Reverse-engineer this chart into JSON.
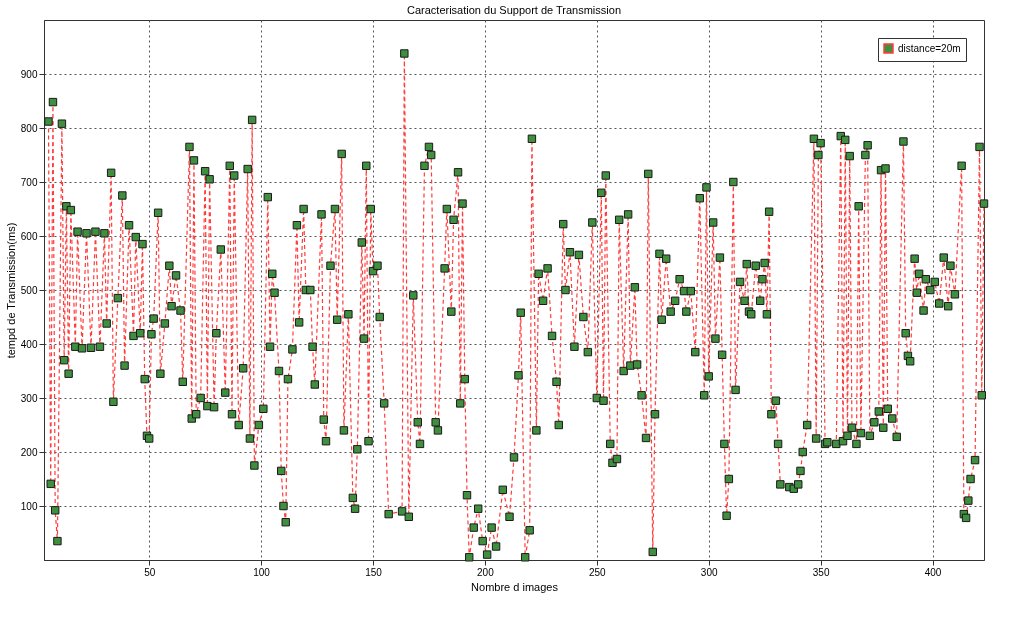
{
  "chart_data": {
    "type": "line",
    "title": "Caracterisation du Support de Transmission",
    "xlabel": "Nombre d images",
    "ylabel": "tempd de Transmission(ms)",
    "xlim": [
      3,
      423
    ],
    "ylim": [
      0,
      1000
    ],
    "xticks": [
      50,
      100,
      150,
      200,
      250,
      300,
      350,
      400
    ],
    "yticks": [
      100,
      200,
      300,
      400,
      500,
      600,
      700,
      800,
      900
    ],
    "grid": true,
    "legend": "top right",
    "marker": "square",
    "line_style": "dashed",
    "series": [
      {
        "name": "distance=20m",
        "color": "#ff3b3b",
        "x": [
          5,
          6,
          7,
          8,
          9,
          11,
          12,
          13,
          14,
          15,
          17,
          18,
          20,
          22,
          24,
          26,
          28,
          30,
          31,
          33,
          34,
          36,
          38,
          39,
          41,
          43,
          44,
          46,
          47,
          48,
          49,
          50,
          51,
          52,
          54,
          55,
          57,
          59,
          60,
          62,
          64,
          65,
          68,
          69,
          70,
          71,
          73,
          75,
          76,
          77,
          79,
          80,
          82,
          84,
          86,
          87,
          88,
          90,
          92,
          94,
          95,
          96,
          97,
          99,
          101,
          103,
          104,
          105,
          106,
          108,
          109,
          110,
          111,
          112,
          114,
          116,
          117,
          119,
          120,
          122,
          123,
          124,
          127,
          128,
          129,
          131,
          133,
          134,
          136,
          137,
          139,
          141,
          142,
          143,
          145,
          146,
          147,
          148,
          149,
          150,
          152,
          153,
          155,
          157,
          163,
          164,
          166,
          168,
          170,
          171,
          173,
          175,
          176,
          178,
          179,
          182,
          183,
          185,
          186,
          188,
          189,
          190,
          191,
          192,
          193,
          195,
          197,
          199,
          201,
          203,
          205,
          208,
          211,
          213,
          215,
          216,
          218,
          220,
          221,
          223,
          224,
          226,
          228,
          230,
          232,
          233,
          235,
          236,
          238,
          240,
          242,
          244,
          246,
          248,
          250,
          252,
          253,
          254,
          256,
          257,
          259,
          260,
          262,
          264,
          265,
          267,
          268,
          270,
          272,
          273,
          275,
          276,
          278,
          279,
          281,
          283,
          285,
          287,
          289,
          290,
          292,
          294,
          296,
          298,
          299,
          300,
          302,
          303,
          305,
          306,
          307,
          308,
          309,
          311,
          312,
          314,
          316,
          317,
          318,
          319,
          321,
          323,
          324,
          325,
          326,
          327,
          328,
          330,
          331,
          332,
          336,
          338,
          340,
          341,
          342,
          344,
          347,
          348,
          349,
          350,
          352,
          353,
          357,
          359,
          360,
          361,
          362,
          363,
          364,
          366,
          367,
          368,
          370,
          371,
          372,
          374,
          376,
          377,
          378,
          379,
          380,
          382,
          384,
          387,
          388,
          389,
          390,
          392,
          393,
          394,
          396,
          397,
          399,
          401,
          403,
          405,
          407,
          408,
          410,
          413,
          414,
          415,
          416,
          417,
          419,
          421,
          422,
          423
        ],
        "values": [
          812,
          141,
          848,
          92,
          35,
          808,
          370,
          655,
          345,
          648,
          395,
          608,
          392,
          605,
          393,
          608,
          395,
          605,
          438,
          717,
          293,
          485,
          675,
          360,
          620,
          415,
          598,
          420,
          585,
          335,
          230,
          225,
          418,
          447,
          643,
          345,
          438,
          545,
          470,
          527,
          462,
          330,
          765,
          262,
          740,
          270,
          300,
          720,
          285,
          705,
          283,
          420,
          575,
          310,
          730,
          270,
          712,
          250,
          355,
          724,
          225,
          815,
          175,
          250,
          280,
          672,
          395,
          530,
          495,
          350,
          165,
          100,
          70,
          335,
          390,
          620,
          440,
          650,
          500,
          500,
          395,
          325,
          640,
          260,
          220,
          545,
          650,
          445,
          752,
          240,
          455,
          115,
          95,
          205,
          588,
          410,
          730,
          220,
          650,
          535,
          545,
          450,
          290,
          85,
          90,
          938,
          80,
          490,
          255,
          215,
          730,
          765,
          750,
          255,
          240,
          540,
          650,
          460,
          630,
          718,
          290,
          660,
          335,
          120,
          5,
          60,
          95,
          35,
          10,
          60,
          25,
          130,
          80,
          190,
          342,
          458,
          5,
          55,
          780,
          240,
          530,
          480,
          540,
          415,
          330,
          250,
          622,
          500,
          570,
          395,
          565,
          450,
          385,
          625,
          300,
          680,
          295,
          712,
          215,
          180,
          187,
          630,
          350,
          640,
          360,
          505,
          362,
          305,
          226,
          715,
          15,
          270,
          567,
          445,
          558,
          460,
          480,
          520,
          498,
          460,
          498,
          385,
          670,
          305,
          690,
          340,
          625,
          410,
          560,
          380,
          215,
          82,
          150,
          700,
          315,
          515,
          480,
          548,
          460,
          455,
          545,
          480,
          520,
          550,
          455,
          645,
          270,
          295,
          215,
          140,
          135,
          132,
          140,
          165,
          200,
          250,
          780,
          225,
          750,
          772,
          215,
          218,
          215,
          785,
          220,
          778,
          230,
          748,
          245,
          215,
          655,
          235,
          750,
          768,
          230,
          255,
          275,
          722,
          245,
          725,
          280,
          262,
          228,
          775,
          420,
          378,
          368,
          558,
          495,
          530,
          462,
          520,
          500,
          515,
          475,
          560,
          470,
          545,
          492,
          730,
          85,
          78,
          110,
          150,
          185,
          765,
          305,
          660
        ]
      }
    ]
  }
}
